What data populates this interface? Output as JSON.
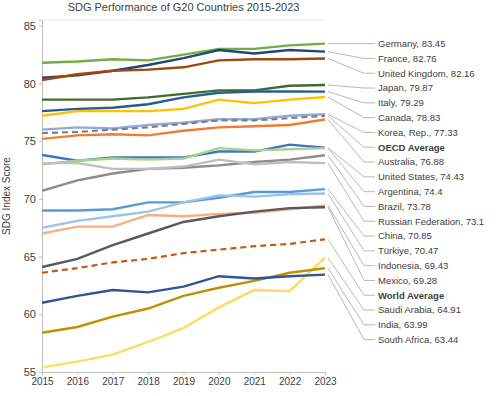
{
  "chart_data": {
    "type": "line",
    "title": "SDG Performance of G20 Countries 2015-2023",
    "y_label": "SDG Index Score",
    "x": [
      2015,
      2016,
      2017,
      2018,
      2019,
      2020,
      2021,
      2022,
      2023
    ],
    "xlim": [
      2015,
      2023
    ],
    "xticks": [
      2015,
      2016,
      2017,
      2018,
      2019,
      2020,
      2021,
      2022,
      2023
    ],
    "ylim": [
      55,
      85.5
    ],
    "yticks": [
      55,
      60,
      65,
      70,
      75,
      80,
      85
    ],
    "grid": false,
    "series": [
      {
        "name": "Germany",
        "label": "Germany, 83.45",
        "color": "#70ad47",
        "line_style": "solid",
        "values": [
          81.8,
          81.9,
          82.1,
          82.0,
          82.5,
          83.0,
          83.0,
          83.3,
          83.45
        ]
      },
      {
        "name": "France",
        "label": "France, 82.76",
        "color": "#264478",
        "line_style": "solid",
        "values": [
          80.5,
          80.7,
          81.1,
          81.6,
          82.2,
          82.9,
          82.6,
          82.9,
          82.76
        ]
      },
      {
        "name": "United Kingdom",
        "label": "United Kingdom, 82.16",
        "color": "#9e480e",
        "line_style": "solid",
        "values": [
          80.3,
          80.8,
          81.1,
          81.2,
          81.4,
          82.0,
          82.1,
          82.1,
          82.16
        ]
      },
      {
        "name": "Japan",
        "label": "Japan, 79.87",
        "color": "#43682b",
        "line_style": "solid",
        "values": [
          78.6,
          78.6,
          78.6,
          78.8,
          79.1,
          79.4,
          79.4,
          79.8,
          79.87
        ]
      },
      {
        "name": "Italy",
        "label": "Italy, 79.29",
        "color": "#255e91",
        "line_style": "solid",
        "values": [
          77.6,
          77.8,
          77.9,
          78.2,
          78.8,
          79.2,
          79.3,
          79.3,
          79.29
        ]
      },
      {
        "name": "Canada",
        "label": "Canada, 78.83",
        "color": "#ffc000",
        "line_style": "solid",
        "values": [
          77.2,
          77.6,
          77.6,
          77.6,
          77.8,
          78.6,
          78.3,
          78.6,
          78.83
        ]
      },
      {
        "name": "Korea, Rep.",
        "label": "Korea, Rep., 77.33",
        "color": "#8faadc",
        "line_style": "solid",
        "values": [
          76.0,
          76.2,
          76.1,
          76.4,
          76.6,
          76.9,
          76.9,
          77.2,
          77.33
        ]
      },
      {
        "name": "OECD Average",
        "label": "OECD Average",
        "color": "#7f7f7f",
        "line_style": "dashed",
        "values": [
          75.7,
          75.8,
          76.0,
          76.2,
          76.5,
          76.8,
          76.8,
          77.0,
          77.2
        ]
      },
      {
        "name": "Australia",
        "label": "Australia, 76.88",
        "color": "#ed7d31",
        "line_style": "solid",
        "values": [
          75.2,
          75.5,
          75.6,
          75.5,
          75.9,
          76.2,
          76.3,
          76.4,
          76.88
        ]
      },
      {
        "name": "United States",
        "label": "United States, 74.43",
        "color": "#4472c4",
        "line_style": "solid",
        "values": [
          73.8,
          73.3,
          73.6,
          73.6,
          73.6,
          74.1,
          74.1,
          74.7,
          74.43
        ]
      },
      {
        "name": "Argentina",
        "label": "Argentina, 74.4",
        "color": "#a9d18e",
        "line_style": "solid",
        "values": [
          73.0,
          73.3,
          73.5,
          73.4,
          73.5,
          74.4,
          74.2,
          74.3,
          74.4
        ]
      },
      {
        "name": "Brazil",
        "label": "Brazil, 73.78",
        "color": "#8c8c8c",
        "line_style": "solid",
        "values": [
          70.7,
          71.6,
          72.2,
          72.6,
          72.7,
          72.9,
          73.2,
          73.4,
          73.78
        ]
      },
      {
        "name": "Russian Federation",
        "label": "Russian Federation, 73.1",
        "color": "#bfbfbf",
        "line_style": "solid",
        "values": [
          73.1,
          73.1,
          72.6,
          72.6,
          72.8,
          73.4,
          73.0,
          73.2,
          73.1
        ]
      },
      {
        "name": "China",
        "label": "China, 70.85",
        "color": "#5b9bd5",
        "line_style": "solid",
        "values": [
          69.0,
          69.0,
          69.1,
          69.7,
          69.7,
          70.1,
          70.6,
          70.6,
          70.85
        ]
      },
      {
        "name": "Türkiye",
        "label": "Türkiye, 70.47",
        "color": "#9dc3e6",
        "line_style": "solid",
        "values": [
          67.5,
          68.1,
          68.5,
          68.9,
          69.7,
          70.3,
          70.2,
          70.4,
          70.47
        ]
      },
      {
        "name": "Indonesia",
        "label": "Indonesia, 69.43",
        "color": "#f4b183",
        "line_style": "solid",
        "values": [
          67.0,
          67.6,
          67.6,
          68.6,
          68.5,
          68.7,
          68.8,
          69.1,
          69.43
        ]
      },
      {
        "name": "Mexico",
        "label": "Mexico, 69.28",
        "color": "#595959",
        "line_style": "solid",
        "values": [
          64.1,
          64.8,
          66.0,
          67.0,
          68.0,
          68.5,
          68.9,
          69.2,
          69.28
        ]
      },
      {
        "name": "World Average",
        "label": "World Average",
        "color": "#c55a11",
        "line_style": "dashed",
        "values": [
          63.6,
          64.0,
          64.5,
          64.8,
          65.3,
          65.6,
          65.9,
          66.1,
          66.5
        ]
      },
      {
        "name": "Saudi Arabia",
        "label": "Saudi Arabia, 64.91",
        "color": "#ffd966",
        "line_style": "solid",
        "values": [
          55.4,
          55.9,
          56.5,
          57.6,
          58.8,
          60.6,
          62.1,
          62.0,
          64.91
        ]
      },
      {
        "name": "India",
        "label": "India, 63.99",
        "color": "#bf9000",
        "line_style": "solid",
        "values": [
          58.4,
          58.9,
          59.8,
          60.5,
          61.6,
          62.3,
          62.9,
          63.6,
          63.99
        ]
      },
      {
        "name": "South Africa",
        "label": "South Africa, 63.44",
        "color": "#2f5597",
        "line_style": "solid",
        "values": [
          61.0,
          61.6,
          62.1,
          61.9,
          62.4,
          63.3,
          63.1,
          63.3,
          63.44
        ]
      }
    ]
  }
}
